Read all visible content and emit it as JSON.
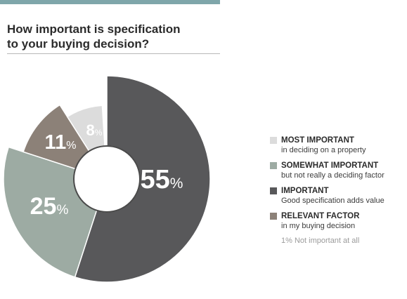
{
  "title": "How important is specification\nto your buying decision?",
  "legend_note": "1% Not important at all",
  "chart_data": {
    "type": "pie",
    "title": "How important is specification to your buying decision?",
    "unit": "%",
    "slices": [
      {
        "label": "IMPORTANT",
        "description": "Good specification adds value",
        "value": 55,
        "color": "#58585a",
        "text_color": "#ffffff"
      },
      {
        "label": "SOMEWHAT IMPORTANT",
        "description": "but not really a deciding factor",
        "value": 25,
        "color": "#9daba3",
        "text_color": "#ffffff"
      },
      {
        "label": "RELEVANT FACTOR",
        "description": "in my buying decision",
        "value": 11,
        "color": "#8c8178",
        "text_color": "#ffffff"
      },
      {
        "label": "MOST IMPORTANT",
        "description": "in deciding on a property",
        "value": 8,
        "color": "#dcdcdc",
        "text_color": "#ffffff"
      }
    ],
    "legend_order": [
      "MOST IMPORTANT",
      "SOMEWHAT IMPORTANT",
      "IMPORTANT",
      "RELEVANT FACTOR"
    ],
    "legend_placement": "right"
  }
}
